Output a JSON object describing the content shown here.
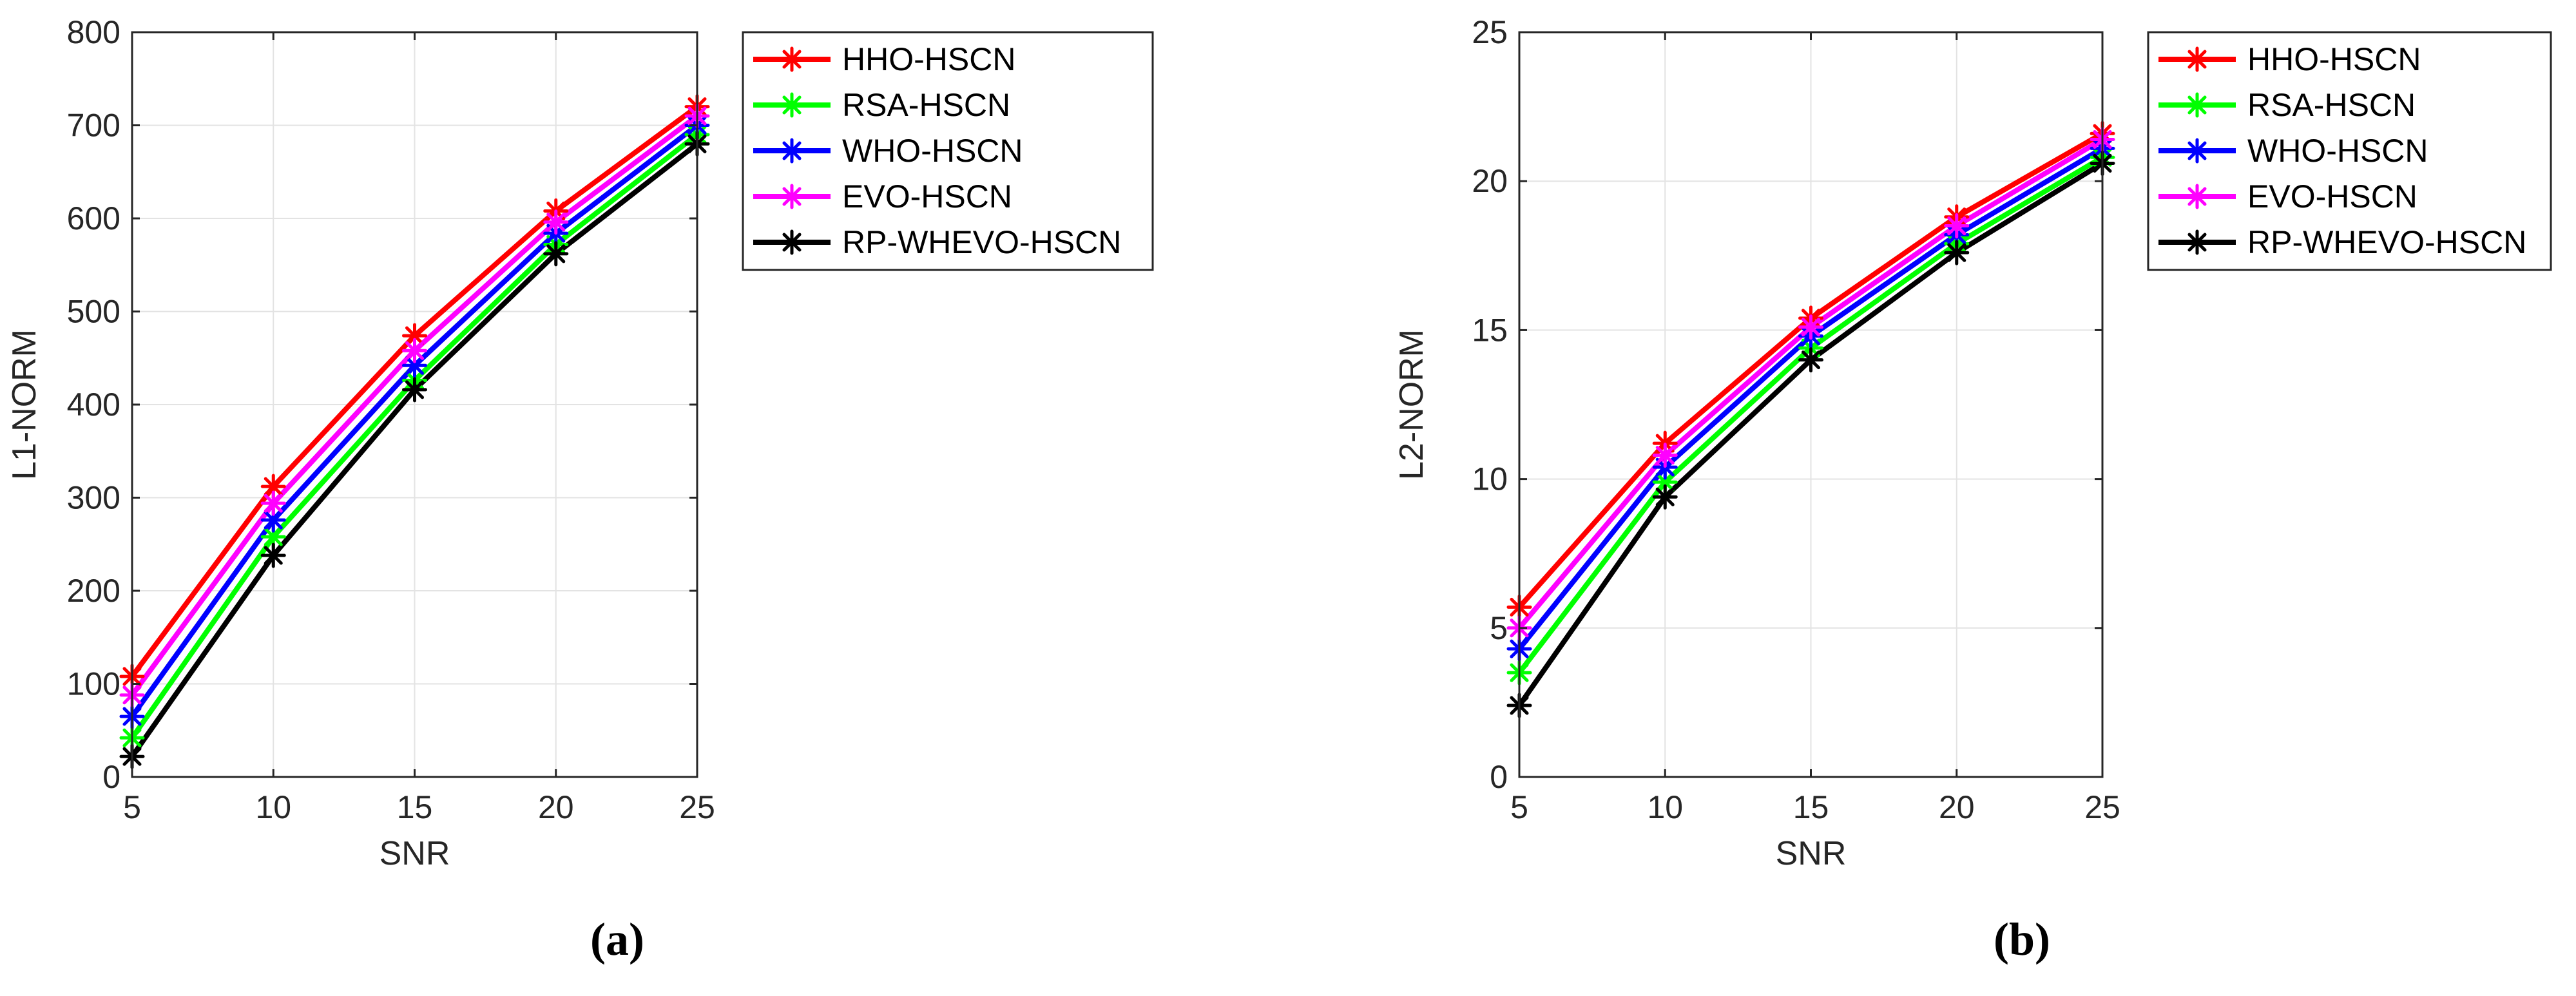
{
  "series_names": [
    "HHO-HSCN",
    "RSA-HSCN",
    "WHO-HSCN",
    "EVO-HSCN",
    "RP-WHEVO-HSCN"
  ],
  "series_colors": [
    "#ff0000",
    "#00ff00",
    "#0000ff",
    "#ff00ff",
    "#000000"
  ],
  "chart_data": [
    {
      "type": "line",
      "caption": "(a)",
      "xlabel": "SNR",
      "ylabel": "L1-NORM",
      "xlim": [
        5,
        25
      ],
      "ylim": [
        0,
        800
      ],
      "xticks": [
        5,
        10,
        15,
        20,
        25
      ],
      "yticks": [
        0,
        100,
        200,
        300,
        400,
        500,
        600,
        700,
        800
      ],
      "grid": true,
      "legend_position": "outside-right",
      "x": [
        5,
        10,
        15,
        20,
        25
      ],
      "series": [
        {
          "name": "HHO-HSCN",
          "color": "#ff0000",
          "values": [
            108,
            312,
            474,
            608,
            720
          ]
        },
        {
          "name": "RSA-HSCN",
          "color": "#00ff00",
          "values": [
            42,
            258,
            426,
            572,
            690
          ]
        },
        {
          "name": "WHO-HSCN",
          "color": "#0000ff",
          "values": [
            65,
            276,
            442,
            584,
            700
          ]
        },
        {
          "name": "EVO-HSCN",
          "color": "#ff00ff",
          "values": [
            88,
            294,
            458,
            596,
            710
          ]
        },
        {
          "name": "RP-WHEVO-HSCN",
          "color": "#000000",
          "values": [
            22,
            238,
            416,
            562,
            680
          ]
        }
      ]
    },
    {
      "type": "line",
      "caption": "(b)",
      "xlabel": "SNR",
      "ylabel": "L2-NORM",
      "xlim": [
        5,
        25
      ],
      "ylim": [
        0,
        25
      ],
      "xticks": [
        5,
        10,
        15,
        20,
        25
      ],
      "yticks": [
        0,
        5,
        10,
        15,
        20,
        25
      ],
      "grid": true,
      "legend_position": "outside-right",
      "x": [
        5,
        10,
        15,
        20,
        25
      ],
      "series": [
        {
          "name": "HHO-HSCN",
          "color": "#ff0000",
          "values": [
            5.7,
            11.2,
            15.4,
            18.8,
            21.6
          ]
        },
        {
          "name": "RSA-HSCN",
          "color": "#00ff00",
          "values": [
            3.5,
            9.9,
            14.4,
            17.9,
            20.8
          ]
        },
        {
          "name": "WHO-HSCN",
          "color": "#0000ff",
          "values": [
            4.3,
            10.4,
            14.8,
            18.2,
            21.1
          ]
        },
        {
          "name": "EVO-HSCN",
          "color": "#ff00ff",
          "values": [
            5.0,
            10.8,
            15.1,
            18.5,
            21.4
          ]
        },
        {
          "name": "RP-WHEVO-HSCN",
          "color": "#000000",
          "values": [
            2.4,
            9.4,
            14.0,
            17.6,
            20.6
          ]
        }
      ]
    }
  ]
}
